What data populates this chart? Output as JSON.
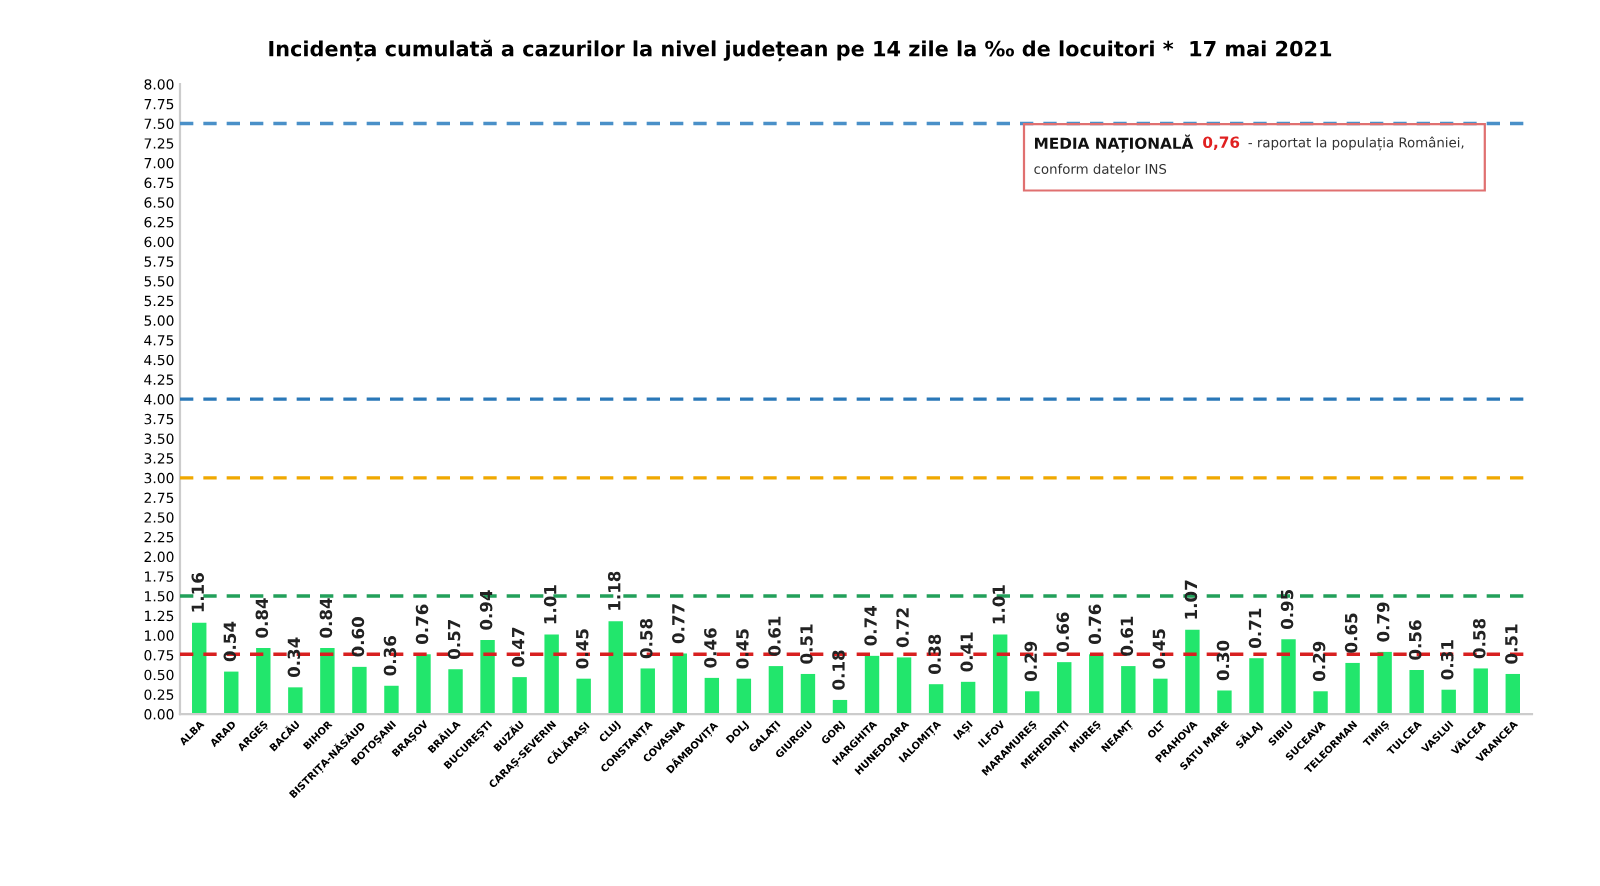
{
  "chart_data": {
    "type": "bar",
    "title": "Incidența cumulată a cazurilor la nivel județean pe 14 zile la ‰ de locuitori *  17 mai 2021",
    "categories": [
      "ALBA",
      "ARAD",
      "ARGEȘ",
      "BACĂU",
      "BIHOR",
      "BISTRIȚA-NĂSĂUD",
      "BOTOȘANI",
      "BRAȘOV",
      "BRĂILA",
      "BUCUREȘTI",
      "BUZĂU",
      "CARAȘ-SEVERIN",
      "CĂLĂRAȘI",
      "CLUJ",
      "CONSTANȚA",
      "COVASNA",
      "DÂMBOVIȚA",
      "DOLJ",
      "GALAȚI",
      "GIURGIU",
      "GORJ",
      "HARGHITA",
      "HUNEDOARA",
      "IALOMIȚA",
      "IAȘI",
      "ILFOV",
      "MARAMUREȘ",
      "MEHEDINȚI",
      "MUREȘ",
      "NEAMȚ",
      "OLT",
      "PRAHOVA",
      "SATU MARE",
      "SĂLAJ",
      "SIBIU",
      "SUCEAVA",
      "TELEORMAN",
      "TIMIȘ",
      "TULCEA",
      "VASLUI",
      "VÂLCEA",
      "VRANCEA"
    ],
    "values": [
      1.16,
      0.54,
      0.84,
      0.34,
      0.84,
      0.6,
      0.36,
      0.76,
      0.57,
      0.94,
      0.47,
      1.01,
      0.45,
      1.18,
      0.58,
      0.77,
      0.46,
      0.45,
      0.61,
      0.51,
      0.18,
      0.74,
      0.72,
      0.38,
      0.41,
      1.01,
      0.29,
      0.66,
      0.76,
      0.61,
      0.45,
      1.07,
      0.3,
      0.71,
      0.95,
      0.29,
      0.65,
      0.79,
      0.56,
      0.31,
      0.58,
      0.51
    ],
    "color": "#22e66c",
    "value_labels": [
      "1.16",
      "0.54",
      "0.84",
      "0.34",
      "0.84",
      "0.60",
      "0.36",
      "0.76",
      "0.57",
      "0.94",
      "0.47",
      "1.01",
      "0.45",
      "1.18",
      "0.58",
      "0.77",
      "0.46",
      "0.45",
      "0.61",
      "0.51",
      "0.18",
      "0.74",
      "0.72",
      "0.38",
      "0.41",
      "1.01",
      "0.29",
      "0.66",
      "0.76",
      "0.61",
      "0.45",
      "1.07",
      "0.30",
      "0.71",
      "0.95",
      "0.29",
      "0.65",
      "0.79",
      "0.56",
      "0.31",
      "0.58",
      "0.51"
    ],
    "ylim": [
      0,
      8
    ],
    "yticks": [
      {
        "value": 0,
        "label": "0.00"
      },
      {
        "value": 0.25,
        "label": "0.25"
      },
      {
        "value": 0.5,
        "label": "0.50"
      },
      {
        "value": 0.75,
        "label": "0.75"
      },
      {
        "value": 1,
        "label": "1.00"
      },
      {
        "value": 1.25,
        "label": "1.25"
      },
      {
        "value": 1.5,
        "label": "1.50"
      },
      {
        "value": 1.75,
        "label": "1.75"
      },
      {
        "value": 2,
        "label": "2.00"
      },
      {
        "value": 2.25,
        "label": "2.25"
      },
      {
        "value": 2.5,
        "label": "2.50"
      },
      {
        "value": 2.75,
        "label": "2.75"
      },
      {
        "value": 3,
        "label": "3.00"
      },
      {
        "value": 3.25,
        "label": "3.25"
      },
      {
        "value": 3.5,
        "label": "3.50"
      },
      {
        "value": 3.75,
        "label": "3.75"
      },
      {
        "value": 4,
        "label": "4.00"
      },
      {
        "value": 4.25,
        "label": "4.25"
      },
      {
        "value": 4.5,
        "label": "4.50"
      },
      {
        "value": 4.75,
        "label": "4.75"
      },
      {
        "value": 5,
        "label": "5.00"
      },
      {
        "value": 5.25,
        "label": "5.25"
      },
      {
        "value": 5.5,
        "label": "5.50"
      },
      {
        "value": 5.75,
        "label": "5.75"
      },
      {
        "value": 6,
        "label": "6.00"
      },
      {
        "value": 6.25,
        "label": "6.25"
      },
      {
        "value": 6.5,
        "label": "6.50"
      },
      {
        "value": 6.75,
        "label": "6.75"
      },
      {
        "value": 7,
        "label": "7.00"
      },
      {
        "value": 7.25,
        "label": "7.25"
      },
      {
        "value": 7.5,
        "label": "7.50"
      },
      {
        "value": 7.75,
        "label": "7.75"
      },
      {
        "value": 8,
        "label": "8.00"
      }
    ],
    "grid": false,
    "ref_lines": [
      {
        "axis": "y",
        "value": 7.5,
        "color": "#4a90c8",
        "line_style": "dashed"
      },
      {
        "axis": "y",
        "value": 4.0,
        "color": "#2a78b8",
        "line_style": "dashed"
      },
      {
        "axis": "y",
        "value": 3.0,
        "color": "#f0a800",
        "line_style": "dashed"
      },
      {
        "axis": "y",
        "value": 1.5,
        "color": "#22a05a",
        "line_style": "dashed"
      },
      {
        "axis": "y",
        "value": 0.76,
        "color": "#d82020",
        "line_style": "dashed"
      }
    ],
    "annotations": [
      "MEDIA NAȚIONALĂ",
      "0,76",
      "- raportat la populația României,",
      "conform datelor INS"
    ]
  }
}
